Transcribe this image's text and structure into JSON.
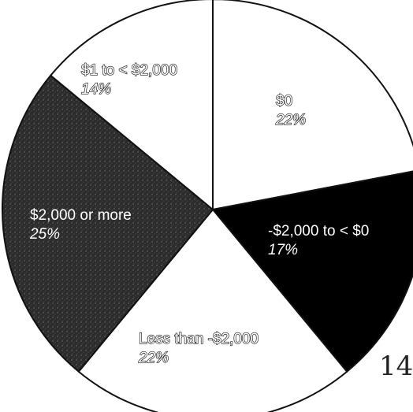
{
  "chart_data": {
    "type": "pie",
    "slices": [
      {
        "label": "$0",
        "percent_label": "22%",
        "value": 22,
        "color": "#ffffff",
        "text_style": "hollow"
      },
      {
        "label": "-$2,000 to < $0",
        "percent_label": "17%",
        "value": 17,
        "color": "#000000",
        "text_style": "dark"
      },
      {
        "label": "Less than -$2,000",
        "percent_label": "22%",
        "value": 22,
        "color": "#ffffff",
        "text_style": "hollow"
      },
      {
        "label": "$2,000 or more",
        "percent_label": "25%",
        "value": 25,
        "color": "#2b2b2b",
        "text_style": "dark"
      },
      {
        "label": "$1 to < $2,000",
        "percent_label": "14%",
        "value": 14,
        "color": "#ffffff",
        "text_style": "hollow"
      }
    ]
  },
  "page_number": "14"
}
